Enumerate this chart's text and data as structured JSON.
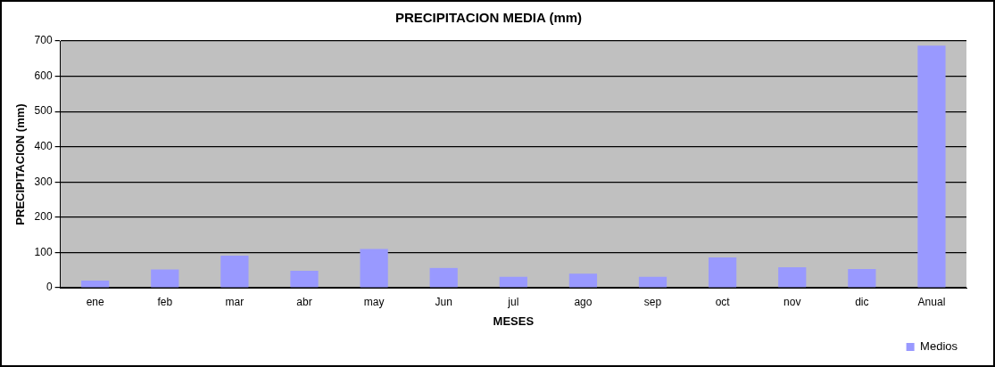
{
  "chart_data": {
    "type": "bar",
    "title": "PRECIPITACION MEDIA (mm)",
    "xlabel": "MESES",
    "ylabel": "PRECIPITACION (mm)",
    "categories": [
      "ene",
      "feb",
      "mar",
      "abr",
      "may",
      "Jun",
      "jul",
      "ago",
      "sep",
      "oct",
      "nov",
      "dic",
      "Anual"
    ],
    "series": [
      {
        "name": "Medios",
        "color": "#9999ff",
        "values": [
          20,
          52,
          91,
          48,
          110,
          56,
          31,
          40,
          31,
          86,
          58,
          53,
          687
        ]
      }
    ],
    "ylim": [
      0,
      700
    ],
    "yticks": [
      0,
      100,
      200,
      300,
      400,
      500,
      600,
      700
    ],
    "grid": "y",
    "legend": "bottom right"
  }
}
